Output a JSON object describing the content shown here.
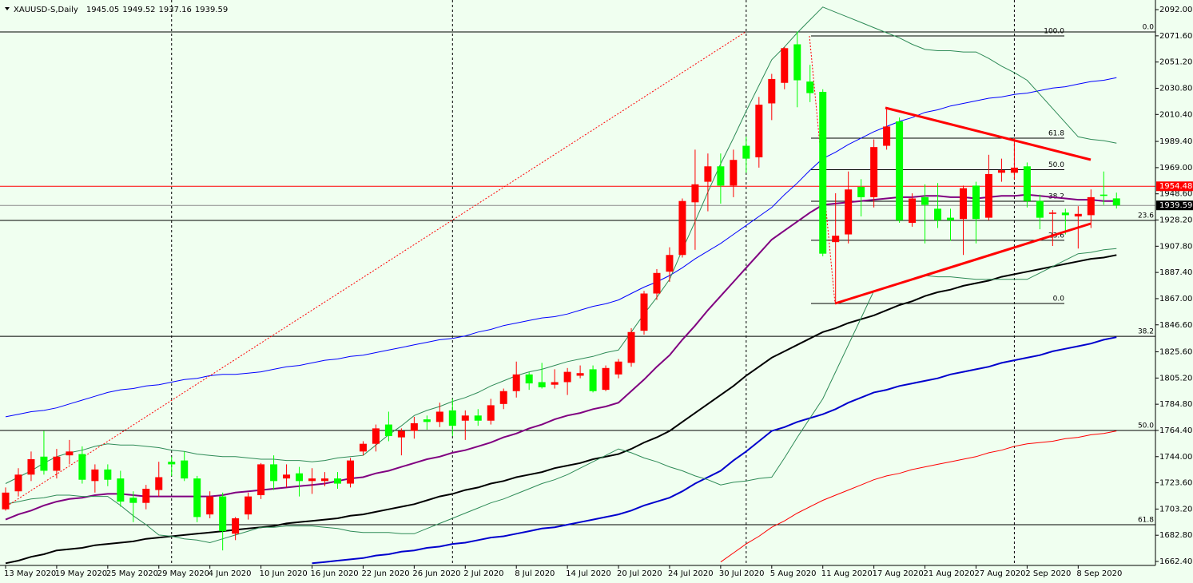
{
  "header": {
    "title": "XAUUSD-S,Daily"
  },
  "chart_data": {
    "type": "candlestick",
    "categories": [
      "13 May 2020",
      null,
      null,
      null,
      "19 May 2020",
      null,
      null,
      null,
      "25 May 2020",
      null,
      null,
      null,
      "29 May 2020",
      null,
      null,
      null,
      "4 Jun 2020",
      null,
      null,
      null,
      "10 Jun 2020",
      null,
      null,
      null,
      "16 Jun 2020",
      null,
      null,
      null,
      "22 Jun 2020",
      null,
      null,
      null,
      "26 Jun 2020",
      null,
      null,
      null,
      "2 Jul 2020",
      null,
      null,
      null,
      "8 Jul 2020",
      null,
      null,
      null,
      "14 Jul 2020",
      null,
      null,
      null,
      "20 Jul 2020",
      null,
      null,
      null,
      "24 Jul 2020",
      null,
      null,
      null,
      "30 Jul 2020",
      null,
      null,
      null,
      "5 Aug 2020",
      null,
      null,
      null,
      "11 Aug 2020",
      null,
      null,
      null,
      "17 Aug 2020",
      null,
      null,
      null,
      "21 Aug 2020",
      null,
      null,
      null,
      "27 Aug 2020",
      null,
      null,
      null,
      "2 Sep 2020",
      null,
      null,
      null,
      "8 Sep 2020",
      null,
      null,
      null
    ],
    "open": [
      1703,
      1717,
      1730,
      1744,
      1733,
      1745,
      1746,
      1725,
      1734,
      1727,
      1712,
      1708,
      1718,
      1740,
      1741,
      1727,
      1699,
      1713,
      1684,
      1699,
      1714,
      1738,
      1727,
      1731,
      1725,
      1725,
      1727,
      1723,
      1748,
      1754,
      1769,
      1759,
      1764,
      1773,
      1771,
      1780,
      1772,
      1776,
      1772,
      1785,
      1795,
      1808,
      1802,
      1800,
      1802,
      1807,
      1812,
      1796,
      1808,
      1817,
      1842,
      1871,
      1888,
      1901,
      1942,
      1958,
      1970,
      1955,
      1986,
      1977,
      2019,
      2035,
      2065,
      2036,
      2028,
      1911,
      1917,
      1954,
      1946,
      1986,
      2005,
      1926,
      1946,
      1937,
      1930,
      1929,
      1955,
      1930,
      1965,
      1965,
      1970,
      1943,
      1933,
      1934,
      1931,
      1932,
      1948,
      1945.05
    ],
    "high": [
      1720,
      1735,
      1748,
      1764,
      1750,
      1757,
      1752,
      1738,
      1738,
      1733,
      1717,
      1722,
      1740,
      1744,
      1748,
      1729,
      1717,
      1716,
      1697,
      1716,
      1739,
      1745,
      1738,
      1736,
      1735,
      1732,
      1732,
      1743,
      1756,
      1769,
      1779,
      1766,
      1775,
      1776,
      1786,
      1789,
      1780,
      1781,
      1789,
      1797,
      1818,
      1810,
      1817,
      1812,
      1813,
      1815,
      1815,
      1815,
      1820,
      1844,
      1873,
      1890,
      1907,
      1945,
      1983,
      1980,
      1980,
      1983,
      1993,
      2024,
      2042,
      2063,
      2075,
      2049,
      2030,
      1949,
      1966,
      1960,
      1991,
      2015,
      2008,
      1949,
      1956,
      1957,
      1937,
      1955,
      1958,
      1979,
      1976,
      1992,
      1973,
      1948,
      1936,
      1937,
      1939,
      1952,
      1966,
      1949.52
    ],
    "low": [
      1702,
      1713,
      1725,
      1730,
      1727,
      1738,
      1723,
      1716,
      1721,
      1705,
      1693,
      1703,
      1713,
      1729,
      1725,
      1693,
      1696,
      1671,
      1679,
      1695,
      1711,
      1718,
      1720,
      1713,
      1715,
      1721,
      1719,
      1720,
      1745,
      1748,
      1756,
      1745,
      1758,
      1765,
      1767,
      1760,
      1757,
      1768,
      1769,
      1781,
      1790,
      1796,
      1797,
      1797,
      1792,
      1805,
      1794,
      1795,
      1805,
      1814,
      1839,
      1866,
      1880,
      1899,
      1905,
      1935,
      1941,
      1946,
      1965,
      1969,
      2006,
      2030,
      2016,
      2020,
      1900,
      1863,
      1910,
      1931,
      1938,
      1983,
      1926,
      1923,
      1910,
      1922,
      1912,
      1901,
      1910,
      1928,
      1958,
      1960,
      1938,
      1921,
      1908,
      1917,
      1906,
      1922,
      1940,
      1937.16
    ],
    "close": [
      1716,
      1730,
      1742,
      1733,
      1744,
      1748,
      1726,
      1734,
      1726,
      1709,
      1708,
      1719,
      1728,
      1738,
      1727,
      1697,
      1713,
      1686,
      1696,
      1713,
      1738,
      1725,
      1730,
      1725,
      1727,
      1727,
      1723,
      1741,
      1754,
      1766,
      1760,
      1764,
      1770,
      1771,
      1779,
      1768,
      1776,
      1772,
      1784,
      1795,
      1808,
      1801,
      1798,
      1802,
      1810,
      1809,
      1795,
      1813,
      1818,
      1841,
      1871,
      1887,
      1901,
      1943,
      1956,
      1970,
      1955,
      1975,
      1976,
      2018,
      2038,
      2062,
      2037,
      2027,
      1902,
      1916,
      1952,
      1946,
      1985,
      2001,
      1928,
      1945,
      1940,
      1928,
      1928,
      1953,
      1929,
      1964,
      1967,
      1969,
      1943,
      1930,
      1934,
      1932,
      1933,
      1946,
      1947,
      1939.59
    ],
    "up_color": "#ff0000",
    "down_color": "#00ff00",
    "lines": [
      {
        "color": "#800080",
        "values": [
          1695,
          1699,
          1702,
          1706,
          1709,
          1711,
          1712,
          1714,
          1715,
          1715,
          1714,
          1713,
          1713,
          1713,
          1713,
          1713,
          1713,
          1714,
          1716,
          1717,
          1718,
          1719,
          1720,
          1721,
          1722,
          1723,
          1725,
          1727,
          1728,
          1731,
          1733,
          1736,
          1739,
          1742,
          1744,
          1747,
          1749,
          1752,
          1755,
          1759,
          1762,
          1766,
          1769,
          1773,
          1776,
          1778,
          1781,
          1783,
          1786,
          1795,
          1804,
          1814,
          1823,
          1835,
          1846,
          1858,
          1869,
          1880,
          1891,
          1902,
          1913,
          1920,
          1927,
          1934,
          1940,
          1941,
          1942,
          1943,
          1944,
          1945,
          1946,
          1946,
          1947,
          1947,
          1946,
          1946,
          1945,
          1946,
          1947,
          1947,
          1948,
          1947,
          1946,
          1945,
          1944,
          1944,
          1943,
          1943
        ]
      },
      {
        "color": "#000000",
        "values": [
          1661,
          1663,
          1666,
          1668,
          1671,
          1672,
          1673,
          1675,
          1676,
          1677,
          1678,
          1680,
          1681,
          1682,
          1683,
          1684,
          1685,
          1686,
          1687,
          1688,
          1689,
          1690,
          1692,
          1693,
          1694,
          1695,
          1696,
          1698,
          1699,
          1701,
          1703,
          1705,
          1707,
          1710,
          1713,
          1715,
          1718,
          1720,
          1723,
          1725,
          1728,
          1730,
          1732,
          1735,
          1737,
          1739,
          1742,
          1744,
          1746,
          1750,
          1755,
          1759,
          1764,
          1771,
          1778,
          1785,
          1792,
          1799,
          1807,
          1814,
          1821,
          1826,
          1831,
          1836,
          1841,
          1844,
          1848,
          1851,
          1854,
          1858,
          1862,
          1865,
          1869,
          1872,
          1874,
          1877,
          1879,
          1881,
          1884,
          1886,
          1888,
          1890,
          1892,
          1894,
          1896,
          1898,
          1899,
          1901
        ]
      },
      {
        "color": "#0000cd",
        "values": [
          null,
          null,
          null,
          null,
          null,
          null,
          null,
          null,
          null,
          null,
          null,
          null,
          null,
          null,
          null,
          null,
          null,
          null,
          null,
          null,
          null,
          null,
          null,
          null,
          1661,
          1662,
          1663,
          1664,
          1665,
          1667,
          1668,
          1670,
          1671,
          1673,
          1674,
          1676,
          1677,
          1679,
          1681,
          1682,
          1684,
          1686,
          1688,
          1689,
          1691,
          1693,
          1695,
          1697,
          1699,
          1702,
          1706,
          1709,
          1712,
          1717,
          1723,
          1728,
          1733,
          1741,
          1748,
          1756,
          1764,
          1767,
          1771,
          1774,
          1777,
          1781,
          1786,
          1790,
          1794,
          1796,
          1799,
          1801,
          1803,
          1805,
          1808,
          1810,
          1812,
          1814,
          1817,
          1819,
          1821,
          1823,
          1826,
          1828,
          1830,
          1832,
          1835,
          1837
        ]
      },
      {
        "color": "#ff0000",
        "values": [
          null,
          null,
          null,
          null,
          null,
          null,
          null,
          null,
          null,
          null,
          null,
          null,
          null,
          null,
          null,
          null,
          null,
          null,
          null,
          null,
          null,
          null,
          null,
          null,
          null,
          null,
          null,
          null,
          null,
          null,
          null,
          null,
          null,
          null,
          null,
          null,
          null,
          null,
          null,
          null,
          null,
          null,
          null,
          null,
          null,
          null,
          null,
          null,
          null,
          null,
          null,
          null,
          null,
          null,
          null,
          null,
          1662,
          1669,
          1676,
          1682,
          1689,
          1694,
          1700,
          1705,
          1710,
          1714,
          1718,
          1722,
          1726,
          1729,
          1731,
          1734,
          1736,
          1738,
          1740,
          1742,
          1744,
          1747,
          1749,
          1752,
          1754,
          1755,
          1756,
          1758,
          1759,
          1761,
          1762,
          1764
        ]
      },
      {
        "color": "#0000ff",
        "values": [
          1775,
          1777,
          1779,
          1780,
          1782,
          1785,
          1788,
          1791,
          1794,
          1796,
          1797,
          1799,
          1800,
          1802,
          1804,
          1805,
          1807,
          1808,
          1808,
          1809,
          1810,
          1812,
          1814,
          1815,
          1817,
          1819,
          1820,
          1822,
          1823,
          1825,
          1827,
          1829,
          1831,
          1833,
          1835,
          1836,
          1838,
          1841,
          1843,
          1846,
          1848,
          1850,
          1852,
          1853,
          1855,
          1858,
          1861,
          1863,
          1866,
          1871,
          1876,
          1880,
          1885,
          1891,
          1898,
          1904,
          1910,
          1917,
          1924,
          1931,
          1938,
          1948,
          1957,
          1967,
          1976,
          1981,
          1987,
          1992,
          1997,
          2001,
          2005,
          2008,
          2012,
          2014,
          2017,
          2019,
          2021,
          2023,
          2024,
          2026,
          2027,
          2029,
          2031,
          2032,
          2034,
          2036,
          2037,
          2039
        ]
      },
      {
        "color": "#2e8b57",
        "values": [
          1723,
          1728,
          1733,
          1739,
          1744,
          1747,
          1749,
          1752,
          1754,
          1753,
          1753,
          1752,
          1751,
          1749,
          1748,
          1746,
          1745,
          1744,
          1744,
          1743,
          1742,
          1742,
          1741,
          1741,
          1740,
          1741,
          1743,
          1744,
          1745,
          1753,
          1761,
          1768,
          1776,
          1780,
          1783,
          1787,
          1790,
          1794,
          1799,
          1803,
          1807,
          1810,
          1812,
          1815,
          1818,
          1820,
          1822,
          1825,
          1827,
          1841,
          1855,
          1868,
          1882,
          1905,
          1927,
          1950,
          1972,
          1992,
          2013,
          2033,
          2053,
          2063,
          2074,
          2084,
          2094,
          2090,
          2086,
          2082,
          2078,
          2074,
          2070,
          2065,
          2061,
          2060,
          2060,
          2059,
          2059,
          2054,
          2048,
          2043,
          2037,
          2026,
          2015,
          2004,
          1993,
          1991,
          1990,
          1988
        ]
      },
      {
        "color": "#2e8b57",
        "values": [
          1707,
          1709,
          1711,
          1712,
          1714,
          1714,
          1713,
          1713,
          1713,
          1706,
          1698,
          1691,
          1683,
          1682,
          1680,
          1679,
          1677,
          1680,
          1683,
          1686,
          1689,
          1689,
          1690,
          1690,
          1690,
          1689,
          1688,
          1686,
          1685,
          1685,
          1685,
          1684,
          1684,
          1688,
          1692,
          1696,
          1700,
          1704,
          1708,
          1711,
          1715,
          1719,
          1723,
          1726,
          1730,
          1735,
          1740,
          1745,
          1750,
          1747,
          1743,
          1740,
          1736,
          1733,
          1729,
          1726,
          1722,
          1724,
          1725,
          1727,
          1728,
          1743,
          1759,
          1774,
          1789,
          1810,
          1831,
          1852,
          1873,
          1876,
          1879,
          1882,
          1885,
          1884,
          1884,
          1883,
          1882,
          1882,
          1882,
          1882,
          1882,
          1887,
          1892,
          1897,
          1902,
          1903,
          1905,
          1906
        ]
      }
    ],
    "ask_price": 1954.48,
    "ask_color": "#ff0000",
    "fibo_large": [
      {
        "label": "0.0",
        "price": 2074.6
      },
      {
        "label": "23.6",
        "price": 1927.9
      },
      {
        "label": "38.2",
        "price": 1837.7
      },
      {
        "label": "50.0",
        "price": 1764.4
      },
      {
        "label": "61.8",
        "price": 1691.0
      }
    ],
    "fibo_small": [
      {
        "label": "100.0",
        "price": 2071.5
      },
      {
        "label": "61.8",
        "price": 1991.9
      },
      {
        "label": "50.0",
        "price": 1967.4
      },
      {
        "label": "38.2",
        "price": 1942.8
      },
      {
        "label": "23.6",
        "price": 1912.4
      },
      {
        "label": "0.0",
        "price": 1863.2
      }
    ],
    "ylim": [
      1659.3,
      2099.5
    ],
    "yticks": [
      {
        "value": 2092,
        "label": "2092.00"
      },
      {
        "value": 2071.6,
        "label": "2071.60"
      },
      {
        "value": 2051.2,
        "label": "2051.20"
      },
      {
        "value": 2030.8,
        "label": "2030.80"
      },
      {
        "value": 2010.4,
        "label": "2010.40"
      },
      {
        "value": 1989.4,
        "label": "1989.40"
      },
      {
        "value": 1969,
        "label": "1969.00"
      },
      {
        "value": 1948.6,
        "label": "1948.60"
      },
      {
        "value": 1928.2,
        "label": "1928.20"
      },
      {
        "value": 1907.8,
        "label": "1907.80"
      },
      {
        "value": 1887.4,
        "label": "1887.40"
      },
      {
        "value": 1867,
        "label": "1867.00"
      },
      {
        "value": 1846.6,
        "label": "1846.60"
      },
      {
        "value": 1825.6,
        "label": "1825.60"
      },
      {
        "value": 1805.2,
        "label": "1805.20"
      },
      {
        "value": 1784.8,
        "label": "1784.80"
      },
      {
        "value": 1764.4,
        "label": "1764.40"
      },
      {
        "value": 1744,
        "label": "1744.00"
      },
      {
        "value": 1723.6,
        "label": "1723.60"
      },
      {
        "value": 1703.2,
        "label": "1703.20"
      },
      {
        "value": 1682.8,
        "label": "1682.80"
      },
      {
        "value": 1662.4,
        "label": "1662.40"
      }
    ],
    "grid": false
  }
}
